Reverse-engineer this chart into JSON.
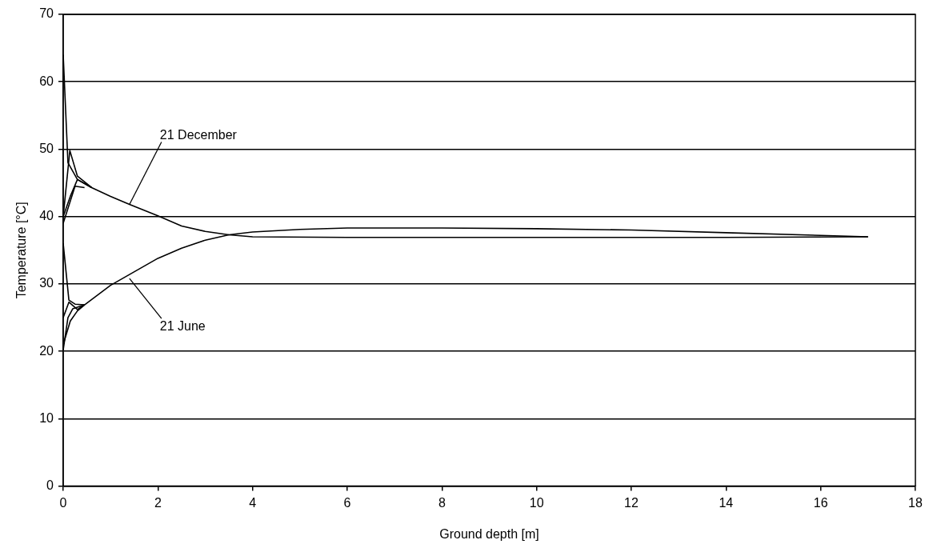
{
  "chart_data": {
    "type": "line",
    "xlabel": "Ground depth [m]",
    "ylabel": "Temperature [°C]",
    "xlim": [
      0,
      18
    ],
    "xticks": [
      0,
      2,
      4,
      6,
      8,
      10,
      12,
      14,
      16,
      18
    ],
    "ylim": [
      0,
      70
    ],
    "yticks": [
      0,
      10,
      20,
      30,
      40,
      50,
      60,
      70
    ],
    "grid": "y",
    "legend": false,
    "marker": "none",
    "line_style": "solid",
    "annotations": [
      {
        "text": "21 December",
        "x": 1.4,
        "y": 41.8
      },
      {
        "text": "21 June",
        "x": 1.4,
        "y": 30.8
      }
    ],
    "series": [
      {
        "color": "#000000",
        "x": [
          0,
          0.1,
          0.3,
          0.6,
          1,
          1.4,
          2,
          2.5,
          3,
          3.5,
          4,
          6,
          10,
          14,
          17
        ],
        "values": [
          64,
          48,
          45.5,
          44.3,
          43,
          41.8,
          40.1,
          38.6,
          37.8,
          37.3,
          37,
          36.9,
          36.9,
          36.9,
          37
        ]
      },
      {
        "color": "#000000",
        "x": [
          0,
          0.14,
          0.3,
          0.6
        ],
        "values": [
          40,
          49.8,
          46,
          44.3
        ]
      },
      {
        "color": "#000000",
        "x": [
          0,
          0.15,
          0.3,
          0.6
        ],
        "values": [
          40,
          43,
          45.5,
          44.3
        ]
      },
      {
        "color": "#000000",
        "x": [
          0,
          0.25,
          0.45
        ],
        "values": [
          39,
          44.5,
          44.3
        ]
      },
      {
        "color": "#000000",
        "x": [
          0,
          0.12,
          0.25,
          0.45,
          1,
          1.6,
          2,
          2.5,
          3,
          3.5,
          4,
          5,
          6,
          8,
          10,
          12,
          14,
          16,
          17
        ],
        "values": [
          36,
          27.6,
          27,
          26.9,
          29.8,
          32.2,
          33.8,
          35.3,
          36.5,
          37.3,
          37.7,
          38.1,
          38.3,
          38.3,
          38.2,
          38,
          37.6,
          37.2,
          37
        ]
      },
      {
        "color": "#000000",
        "x": [
          0,
          0.1,
          0.2,
          0.45
        ],
        "values": [
          20.2,
          25,
          26.3,
          26.9
        ]
      },
      {
        "color": "#000000",
        "x": [
          0,
          0.15,
          0.3,
          0.45
        ],
        "values": [
          21,
          24.5,
          26,
          26.9
        ]
      },
      {
        "color": "#000000",
        "x": [
          0,
          0.12,
          0.3,
          0.45
        ],
        "values": [
          25,
          27.3,
          26.2,
          26.9
        ]
      }
    ]
  }
}
